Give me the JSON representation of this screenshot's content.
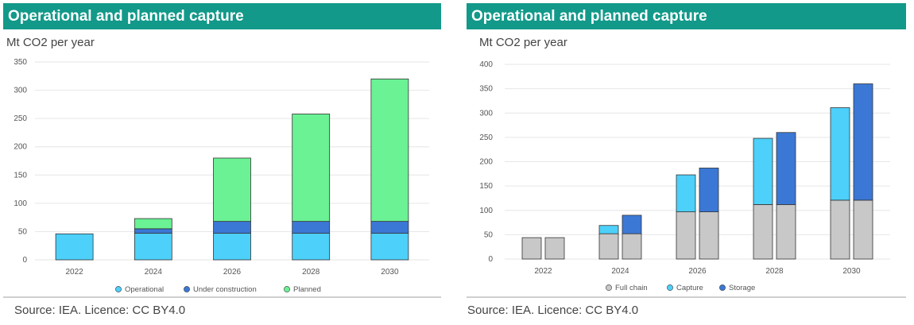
{
  "panels": [
    {
      "title": "Operational and planned capture",
      "unit": "Mt CO2 per year",
      "source": "Source: IEA. Licence: CC BY4.0"
    },
    {
      "title": "Operational and planned capture",
      "unit": "Mt CO2 per year",
      "source": "Source:  IEA. Licence: CC BY4.0"
    }
  ],
  "chart_data": [
    {
      "type": "bar",
      "stacked": true,
      "categories": [
        "2022",
        "2024",
        "2026",
        "2028",
        "2030"
      ],
      "ylim": [
        0,
        350
      ],
      "yticks": [
        0,
        50,
        100,
        150,
        200,
        250,
        300,
        350
      ],
      "grid": true,
      "legend_position": "bottom",
      "series": [
        {
          "name": "Operational",
          "color": "#4dd0fa",
          "values": [
            46,
            47,
            47,
            47,
            47
          ]
        },
        {
          "name": "Under construction",
          "color": "#3b78d6",
          "values": [
            0,
            8,
            21,
            21,
            21
          ]
        },
        {
          "name": "Planned",
          "color": "#6af294",
          "values": [
            0,
            18,
            112,
            190,
            252
          ]
        }
      ]
    },
    {
      "type": "bar",
      "grouped_stacked": true,
      "categories": [
        "2022",
        "2024",
        "2026",
        "2028",
        "2030"
      ],
      "ylim": [
        0,
        400
      ],
      "yticks": [
        0,
        50,
        100,
        150,
        200,
        250,
        300,
        350,
        400
      ],
      "grid": true,
      "legend_position": "bottom",
      "legend": [
        {
          "name": "Full chain",
          "color": "#c8c8c8"
        },
        {
          "name": "Capture",
          "color": "#4dd0fa"
        },
        {
          "name": "Storage",
          "color": "#3b78d6"
        }
      ],
      "groups": [
        {
          "name": "Capture",
          "full_chain": [
            44,
            52,
            97,
            112,
            121
          ],
          "segment": [
            0,
            17,
            76,
            136,
            190
          ]
        },
        {
          "name": "Storage",
          "full_chain": [
            44,
            52,
            97,
            112,
            121
          ],
          "segment": [
            0,
            38,
            90,
            148,
            239
          ]
        }
      ]
    }
  ]
}
